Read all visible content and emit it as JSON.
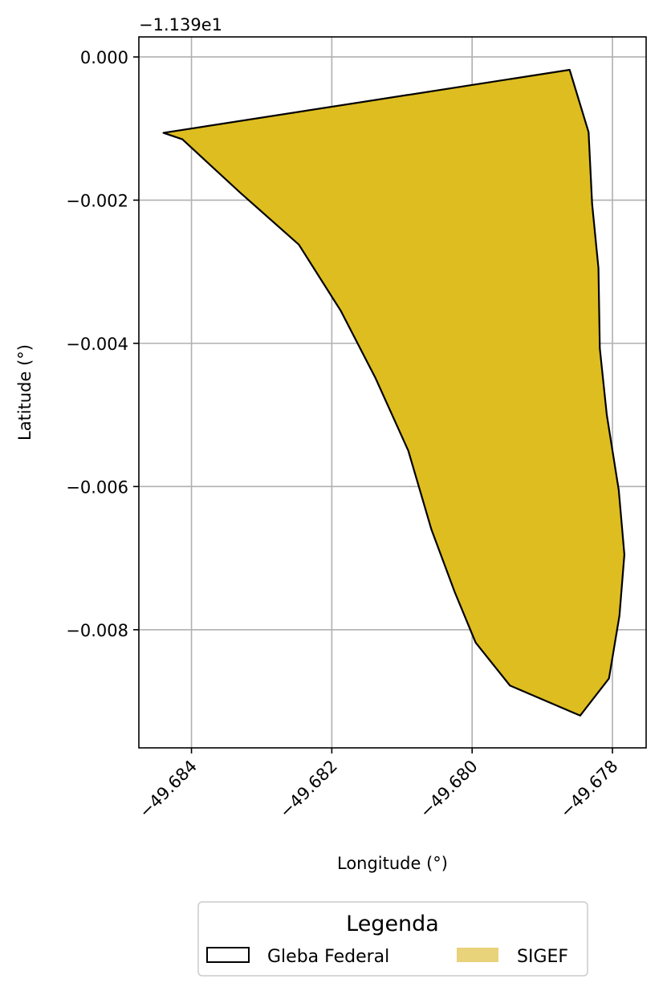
{
  "chart_data": {
    "type": "area",
    "xlabel": "Longitude (°)",
    "ylabel": "Latitude (°)",
    "y_offset_label": "−1.139e1",
    "xlim": [
      -49.68475,
      -49.67752
    ],
    "ylim": [
      -0.00965,
      0.00028
    ],
    "x_ticks": [
      -49.684,
      -49.682,
      -49.68,
      -49.678
    ],
    "x_tick_labels": [
      "−49.684",
      "−49.682",
      "−49.680",
      "−49.678"
    ],
    "y_ticks": [
      0.0,
      -0.002,
      -0.004,
      -0.006,
      -0.008
    ],
    "y_tick_labels": [
      "0.000",
      "−0.002",
      "−0.004",
      "−0.006",
      "−0.008"
    ],
    "grid": true,
    "legend": {
      "title": "Legenda",
      "placement": "below-center",
      "entries": [
        {
          "label": "Gleba Federal",
          "style": "outline",
          "color": "#000000"
        },
        {
          "label": "SIGEF",
          "style": "fill",
          "color": "#e8d27a"
        }
      ]
    },
    "series": [
      {
        "name": "SIGEF",
        "fill": "#debd20",
        "edge": "#000000",
        "points": [
          [
            -49.6844,
            -0.00106
          ],
          [
            -49.68413,
            -0.00115
          ],
          [
            -49.6833,
            -0.0019
          ],
          [
            -49.68247,
            -0.00262
          ],
          [
            -49.68187,
            -0.00355
          ],
          [
            -49.68138,
            -0.00448
          ],
          [
            -49.68091,
            -0.0055
          ],
          [
            -49.68058,
            -0.0066
          ],
          [
            -49.68025,
            -0.00747
          ],
          [
            -49.67995,
            -0.00818
          ],
          [
            -49.67946,
            -0.00878
          ],
          [
            -49.67846,
            -0.0092
          ],
          [
            -49.67805,
            -0.00868
          ],
          [
            -49.6779,
            -0.0078
          ],
          [
            -49.67783,
            -0.00695
          ],
          [
            -49.67791,
            -0.00605
          ],
          [
            -49.67808,
            -0.005
          ],
          [
            -49.67818,
            -0.00407
          ],
          [
            -49.6782,
            -0.00295
          ],
          [
            -49.67829,
            -0.00205
          ],
          [
            -49.67834,
            -0.00105
          ],
          [
            -49.67861,
            -0.00018
          ]
        ]
      }
    ]
  }
}
